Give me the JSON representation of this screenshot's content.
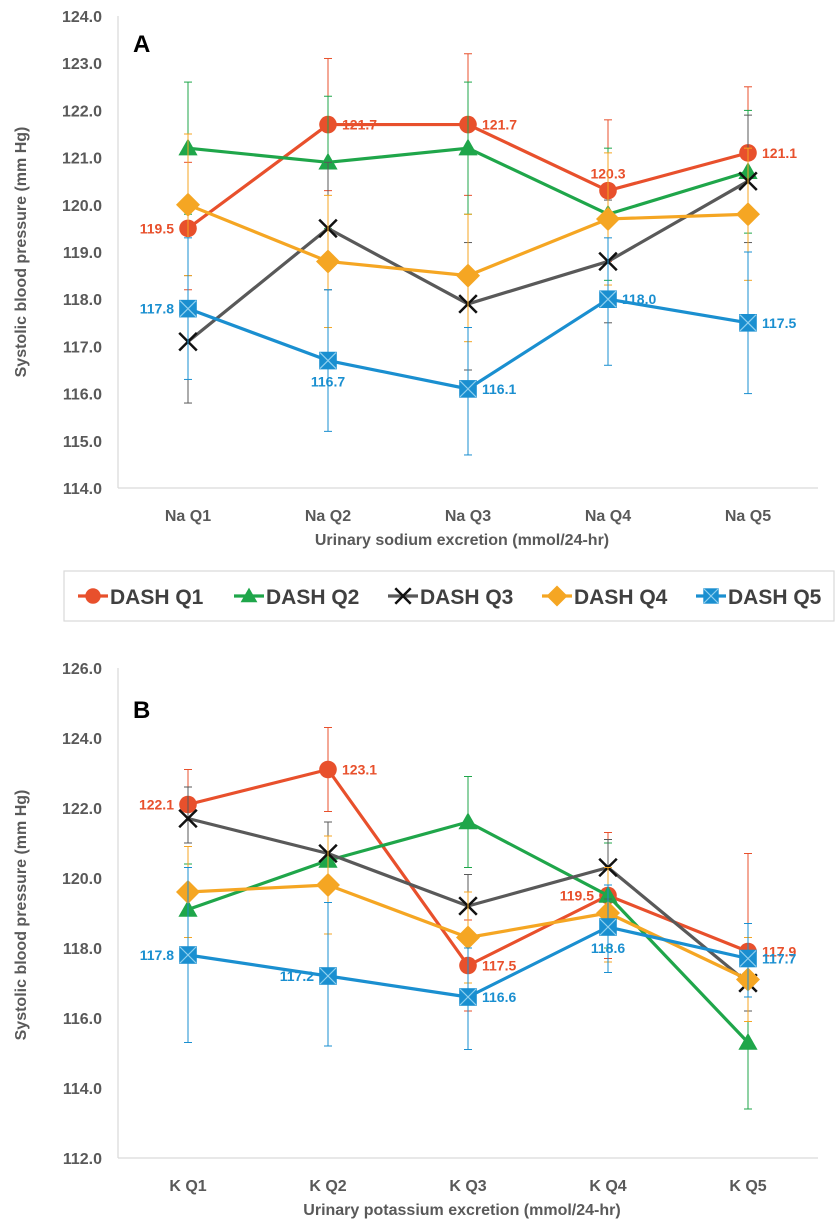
{
  "colors": {
    "DASH Q1": "#E8502C",
    "DASH Q2": "#1FA64A",
    "DASH Q3": "#595959",
    "DASH Q4": "#F5A623",
    "DASH Q5": "#1A8FD0"
  },
  "legend": {
    "items": [
      {
        "label": "DASH Q1",
        "marker": "circle",
        "color": "#E8502C"
      },
      {
        "label": "DASH Q2",
        "marker": "triangle",
        "color": "#1FA64A"
      },
      {
        "label": "DASH Q3",
        "marker": "x",
        "color": "#595959"
      },
      {
        "label": "DASH Q4",
        "marker": "diamond",
        "color": "#F5A623"
      },
      {
        "label": "DASH Q5",
        "marker": "square",
        "color": "#1A8FD0"
      }
    ]
  },
  "chart_data": [
    {
      "type": "line",
      "panel": "A",
      "title": "",
      "xlabel": "Urinary sodium excretion (mmol/24-hr)",
      "ylabel": "Systolic blood pressure (mm Hg)",
      "categories": [
        "Na Q1",
        "Na Q2",
        "Na Q3",
        "Na Q4",
        "Na Q5"
      ],
      "ylim": [
        114.0,
        124.0
      ],
      "yticks": [
        "114.0",
        "115.0",
        "116.0",
        "117.0",
        "118.0",
        "119.0",
        "120.0",
        "121.0",
        "122.0",
        "123.0",
        "124.0"
      ],
      "grid": false,
      "series": [
        {
          "name": "DASH Q1",
          "marker": "circle",
          "values": [
            119.5,
            121.7,
            121.7,
            120.3,
            121.1
          ],
          "err_low": [
            118.2,
            120.3,
            120.2,
            118.8,
            119.7
          ],
          "err_high": [
            120.9,
            123.1,
            123.2,
            121.8,
            122.5
          ],
          "labels": [
            "119.5",
            "121.7",
            "121.7",
            "120.3",
            "121.1"
          ],
          "label_pos": [
            "left",
            "right",
            "right",
            "top",
            "right"
          ]
        },
        {
          "name": "DASH Q2",
          "marker": "triangle",
          "values": [
            121.2,
            120.9,
            121.2,
            119.8,
            120.7
          ],
          "err_low": [
            119.8,
            119.5,
            119.8,
            118.4,
            119.4
          ],
          "err_high": [
            122.6,
            122.3,
            122.6,
            121.2,
            122.0
          ]
        },
        {
          "name": "DASH Q3",
          "marker": "x",
          "values": [
            117.1,
            119.5,
            117.9,
            118.8,
            120.5
          ],
          "err_low": [
            115.8,
            118.2,
            116.5,
            117.5,
            119.2
          ],
          "err_high": [
            118.5,
            120.9,
            119.2,
            120.1,
            121.9
          ]
        },
        {
          "name": "DASH Q4",
          "marker": "diamond",
          "values": [
            120.0,
            118.8,
            118.5,
            119.7,
            119.8
          ],
          "err_low": [
            118.5,
            117.4,
            117.1,
            118.3,
            118.4
          ],
          "err_high": [
            121.5,
            120.2,
            119.8,
            121.1,
            121.2
          ]
        },
        {
          "name": "DASH Q5",
          "marker": "square",
          "values": [
            117.8,
            116.7,
            116.1,
            118.0,
            117.5
          ],
          "err_low": [
            116.3,
            115.2,
            114.7,
            116.6,
            116.0
          ],
          "err_high": [
            119.3,
            118.2,
            117.4,
            119.3,
            119.0
          ],
          "labels": [
            "117.8",
            "116.7",
            "116.1",
            "118.0",
            "117.5"
          ],
          "label_pos": [
            "left",
            "bottom",
            "right",
            "right",
            "right"
          ]
        }
      ]
    },
    {
      "type": "line",
      "panel": "B",
      "title": "",
      "xlabel": "Urinary potassium excretion (mmol/24-hr)",
      "ylabel": "Systolic blood pressure (mm Hg)",
      "categories": [
        "K Q1",
        "K Q2",
        "K Q3",
        "K Q4",
        "K Q5"
      ],
      "ylim": [
        112.0,
        126.0
      ],
      "yticks": [
        "112.0",
        "114.0",
        "116.0",
        "118.0",
        "120.0",
        "122.0",
        "124.0",
        "126.0"
      ],
      "grid": false,
      "series": [
        {
          "name": "DASH Q1",
          "marker": "circle",
          "values": [
            122.1,
            123.1,
            117.5,
            119.5,
            117.9
          ],
          "err_low": [
            121.0,
            121.9,
            116.2,
            117.7,
            115.2
          ],
          "err_high": [
            123.1,
            124.3,
            118.8,
            121.3,
            120.7
          ],
          "labels": [
            "122.1",
            "123.1",
            "117.5",
            "119.5",
            "117.9"
          ],
          "label_pos": [
            "left",
            "right",
            "right",
            "left",
            "right"
          ]
        },
        {
          "name": "DASH Q2",
          "marker": "triangle",
          "values": [
            119.1,
            120.5,
            121.6,
            119.5,
            115.3
          ],
          "err_low": [
            117.8,
            119.3,
            120.3,
            118.0,
            113.4
          ],
          "err_high": [
            120.4,
            121.6,
            122.9,
            121.0,
            117.2
          ]
        },
        {
          "name": "DASH Q3",
          "marker": "x",
          "values": [
            121.7,
            120.7,
            119.2,
            120.3,
            117.0
          ],
          "err_low": [
            121.0,
            119.8,
            118.3,
            119.4,
            116.2
          ],
          "err_high": [
            122.6,
            121.6,
            120.1,
            121.1,
            117.9
          ]
        },
        {
          "name": "DASH Q4",
          "marker": "diamond",
          "values": [
            119.6,
            119.8,
            118.3,
            119.0,
            117.1
          ],
          "err_low": [
            118.3,
            118.4,
            117.0,
            117.6,
            115.9
          ],
          "err_high": [
            120.9,
            121.2,
            119.6,
            120.3,
            118.3
          ]
        },
        {
          "name": "DASH Q5",
          "marker": "square",
          "values": [
            117.8,
            117.2,
            116.6,
            118.6,
            117.7
          ],
          "err_low": [
            115.3,
            115.2,
            115.1,
            117.3,
            116.6
          ],
          "err_high": [
            120.3,
            119.3,
            118.0,
            119.8,
            118.7
          ],
          "labels": [
            "117.8",
            "117.2",
            "116.6",
            "118.6",
            "117.7"
          ],
          "label_pos": [
            "left",
            "left",
            "right",
            "bottom",
            "right"
          ]
        }
      ]
    }
  ]
}
